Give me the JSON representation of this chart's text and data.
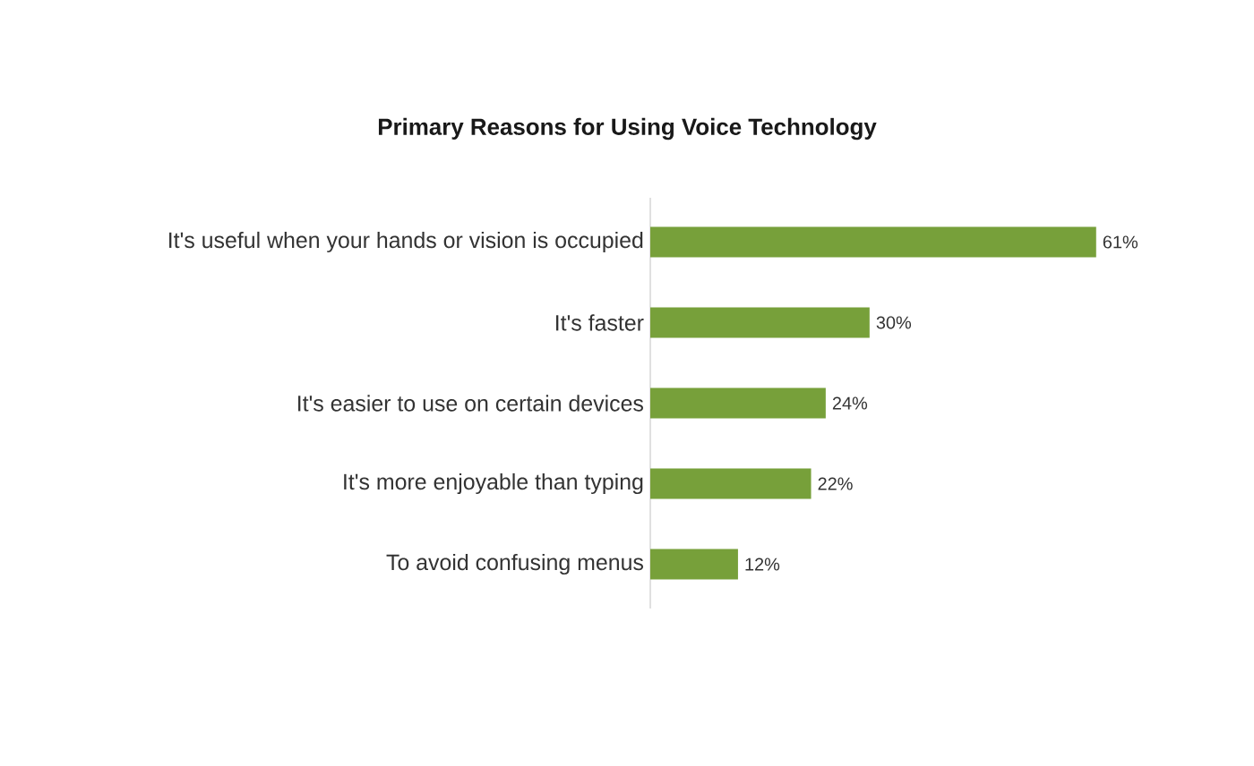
{
  "chart_data": {
    "type": "bar",
    "orientation": "horizontal",
    "title": "Primary Reasons for Using Voice Technology",
    "categories": [
      "It's useful when your hands or vision is occupied",
      "It's faster",
      "It's easier to use on certain devices",
      "It's more enjoyable than typing",
      "To avoid confusing menus"
    ],
    "values": [
      61,
      30,
      24,
      22,
      12
    ],
    "value_labels": [
      "61%",
      "30%",
      "24%",
      "22%",
      "12%"
    ],
    "color": "#77a03a"
  }
}
